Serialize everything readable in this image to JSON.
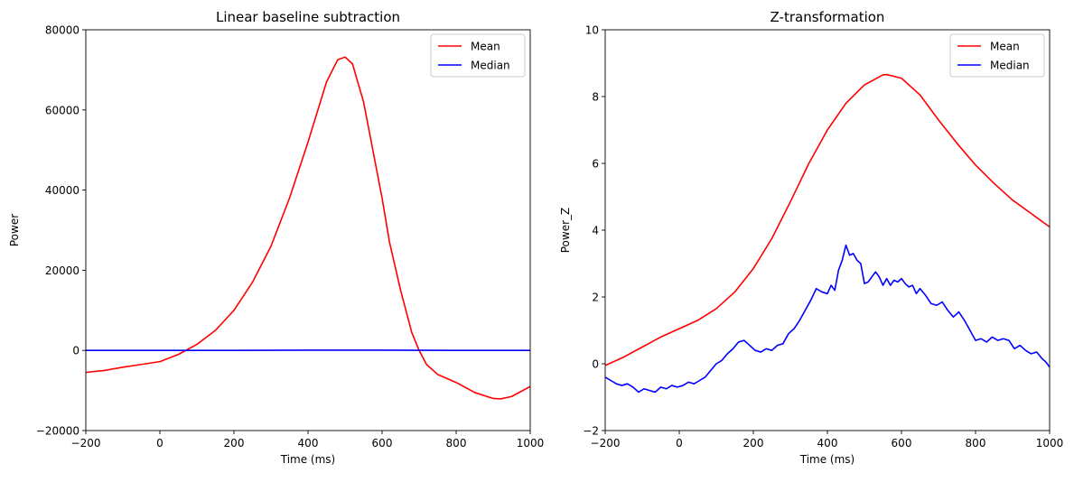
{
  "chart_data": [
    {
      "type": "line",
      "title": "Linear baseline subtraction",
      "xlabel": "Time (ms)",
      "ylabel": "Power",
      "xlim": [
        -200,
        1000
      ],
      "ylim": [
        -20000,
        80000
      ],
      "xticks": [
        -200,
        0,
        200,
        400,
        600,
        800,
        1000
      ],
      "xtick_labels": [
        "−200",
        "0",
        "200",
        "400",
        "600",
        "800",
        "1000"
      ],
      "yticks": [
        -20000,
        0,
        20000,
        40000,
        60000,
        80000
      ],
      "ytick_labels": [
        "−20000",
        "0",
        "20000",
        "40000",
        "60000",
        "80000"
      ],
      "grid": false,
      "legend_position": "top-right",
      "series": [
        {
          "name": "Mean",
          "color": "#ff0000",
          "x": [
            -200,
            -150,
            -100,
            -50,
            0,
            50,
            100,
            150,
            200,
            250,
            300,
            350,
            400,
            450,
            480,
            500,
            520,
            550,
            600,
            620,
            650,
            680,
            700,
            720,
            750,
            800,
            850,
            900,
            920,
            950,
            1000
          ],
          "y": [
            -5500,
            -5000,
            -4200,
            -3500,
            -2800,
            -1000,
            1500,
            5000,
            10000,
            17000,
            26000,
            38000,
            52000,
            67000,
            72500,
            73200,
            71500,
            62000,
            38000,
            27000,
            15000,
            4500,
            0,
            -3500,
            -6000,
            -8000,
            -10500,
            -12000,
            -12100,
            -11500,
            -9000
          ]
        },
        {
          "name": "Median",
          "color": "#0000ff",
          "x": [
            -200,
            0,
            200,
            400,
            600,
            800,
            1000
          ],
          "y": [
            0,
            0,
            0,
            50,
            50,
            0,
            0
          ]
        }
      ]
    },
    {
      "type": "line",
      "title": "Z-transformation",
      "xlabel": "Time (ms)",
      "ylabel": "Power_Z",
      "xlim": [
        -200,
        1000
      ],
      "ylim": [
        -2,
        10
      ],
      "xticks": [
        -200,
        0,
        200,
        400,
        600,
        800,
        1000
      ],
      "xtick_labels": [
        "−200",
        "0",
        "200",
        "400",
        "600",
        "800",
        "1000"
      ],
      "yticks": [
        -2,
        0,
        2,
        4,
        6,
        8,
        10
      ],
      "ytick_labels": [
        "−2",
        "0",
        "2",
        "4",
        "6",
        "8",
        "10"
      ],
      "grid": false,
      "legend_position": "top-right",
      "series": [
        {
          "name": "Mean",
          "color": "#ff0000",
          "x": [
            -200,
            -150,
            -100,
            -50,
            0,
            50,
            100,
            150,
            200,
            250,
            300,
            350,
            400,
            450,
            500,
            550,
            560,
            600,
            650,
            700,
            750,
            800,
            850,
            900,
            950,
            1000
          ],
          "y": [
            -0.05,
            0.2,
            0.5,
            0.8,
            1.05,
            1.3,
            1.65,
            2.15,
            2.85,
            3.75,
            4.85,
            6.0,
            7.0,
            7.8,
            8.35,
            8.65,
            8.66,
            8.55,
            8.05,
            7.3,
            6.6,
            5.95,
            5.4,
            4.9,
            4.5,
            4.1
          ]
        },
        {
          "name": "Median",
          "color": "#0000ff",
          "x": [
            -200,
            -185,
            -170,
            -155,
            -140,
            -125,
            -110,
            -95,
            -80,
            -65,
            -50,
            -35,
            -20,
            -5,
            10,
            25,
            40,
            55,
            70,
            85,
            100,
            115,
            130,
            145,
            160,
            175,
            190,
            205,
            220,
            235,
            250,
            265,
            280,
            295,
            310,
            325,
            340,
            355,
            370,
            385,
            400,
            410,
            420,
            430,
            440,
            450,
            460,
            470,
            480,
            490,
            500,
            510,
            520,
            530,
            540,
            550,
            560,
            570,
            580,
            590,
            600,
            610,
            620,
            630,
            640,
            650,
            665,
            680,
            695,
            710,
            725,
            740,
            755,
            770,
            785,
            800,
            815,
            830,
            845,
            860,
            875,
            890,
            905,
            920,
            935,
            950,
            965,
            980,
            990,
            1000
          ],
          "y": [
            -0.4,
            -0.5,
            -0.6,
            -0.65,
            -0.6,
            -0.7,
            -0.85,
            -0.75,
            -0.8,
            -0.85,
            -0.7,
            -0.75,
            -0.65,
            -0.7,
            -0.65,
            -0.55,
            -0.6,
            -0.5,
            -0.4,
            -0.2,
            0.0,
            0.1,
            0.3,
            0.45,
            0.65,
            0.7,
            0.55,
            0.4,
            0.35,
            0.45,
            0.4,
            0.55,
            0.6,
            0.9,
            1.05,
            1.3,
            1.6,
            1.9,
            2.25,
            2.15,
            2.1,
            2.35,
            2.2,
            2.8,
            3.1,
            3.55,
            3.25,
            3.3,
            3.1,
            3.0,
            2.4,
            2.45,
            2.6,
            2.75,
            2.6,
            2.35,
            2.55,
            2.35,
            2.5,
            2.45,
            2.55,
            2.4,
            2.3,
            2.35,
            2.1,
            2.25,
            2.05,
            1.8,
            1.75,
            1.85,
            1.6,
            1.4,
            1.55,
            1.3,
            1.0,
            0.7,
            0.75,
            0.65,
            0.8,
            0.7,
            0.75,
            0.7,
            0.45,
            0.55,
            0.4,
            0.3,
            0.35,
            0.15,
            0.05,
            -0.1
          ]
        }
      ]
    }
  ]
}
